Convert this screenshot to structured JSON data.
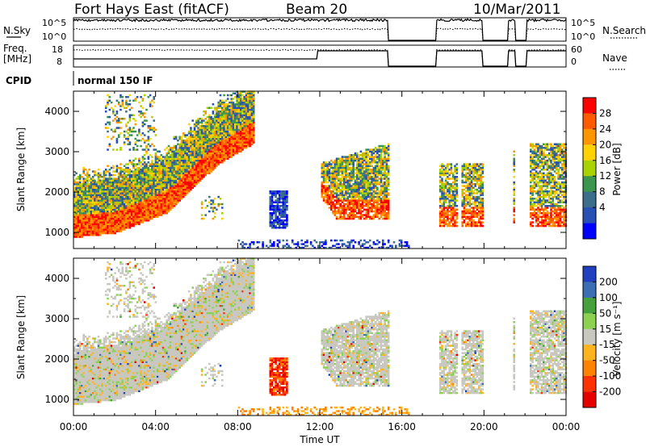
{
  "header": {
    "station": "Fort Hays East (fitACF)",
    "beam": "Beam 20",
    "date": "10/Mar/2011"
  },
  "noise_panel": {
    "left_label": "N.Sky",
    "left_ticks": [
      "10^5",
      "10^0"
    ],
    "right_label": "N.Search",
    "right_ticks": [
      "10^5",
      "10^0"
    ]
  },
  "freq_panel": {
    "left_label_1": "Freq.",
    "left_label_2": "[MHz]",
    "left_ticks": [
      "18",
      "8"
    ],
    "right_label": "Nave",
    "right_ticks": [
      "60",
      "0"
    ]
  },
  "cpid_panel": {
    "label": "CPID",
    "mode": "normal 150 IF"
  },
  "chart_data": [
    {
      "type": "heatmap",
      "name": "power",
      "ylabel": "Slant Range [km]",
      "xlabel": "Time UT",
      "xlim": [
        "00:00",
        "24:00"
      ],
      "ylim": [
        600,
        4500
      ],
      "yticks": [
        "4000",
        "3000",
        "2000",
        "1000"
      ],
      "xticks": [
        "00:00",
        "04:00",
        "08:00",
        "12:00",
        "16:00",
        "20:00",
        "00:00"
      ],
      "colorbar": {
        "label": "Power [dB]",
        "tick_labels": [
          "28",
          "24",
          "20",
          "16",
          "12",
          "8",
          "4"
        ],
        "colors": [
          "#ff0000",
          "#ff5a00",
          "#ff9600",
          "#ffd200",
          "#aad200",
          "#3c9650",
          "#3c6e8c",
          "#2850b4",
          "#0000ff"
        ]
      },
      "observations": [
        {
          "time_range": [
            "00:00",
            "15:20"
          ],
          "description": "dense echoes, strongest power near 1000-2000 km rising to ~3500 km around 08:00"
        },
        {
          "time_range": [
            "15:20",
            "17:40"
          ],
          "description": "data gap"
        },
        {
          "time_range": [
            "17:40",
            "24:00"
          ],
          "description": "intermittent echoes ~1000-2800 km"
        }
      ]
    },
    {
      "type": "heatmap",
      "name": "velocity",
      "ylabel": "Slant Range [km]",
      "xlabel": "Time UT",
      "xlim": [
        "00:00",
        "24:00"
      ],
      "ylim": [
        600,
        4500
      ],
      "yticks": [
        "4000",
        "3000",
        "2000",
        "1000"
      ],
      "xticks": [
        "00:00",
        "04:00",
        "08:00",
        "12:00",
        "16:00",
        "20:00",
        "00:00"
      ],
      "colorbar": {
        "label": "Velocity [m s⁻¹]",
        "tick_labels": [
          "200",
          "100",
          "50",
          "15",
          "-15",
          "-50",
          "-100",
          "-200"
        ],
        "colors": [
          "#2040c0",
          "#3c6eb4",
          "#46a03c",
          "#8cd250",
          "#c8c8c0",
          "#ffb41e",
          "#ff8200",
          "#ff3200",
          "#e60000"
        ]
      },
      "observations": [
        {
          "time_range": [
            "00:00",
            "15:20"
          ],
          "description": "mostly near-zero (grey) velocities, negative patch near 10:00 at ~1500 km"
        },
        {
          "time_range": [
            "17:40",
            "24:00"
          ],
          "description": "mostly near-zero velocities"
        }
      ]
    }
  ]
}
